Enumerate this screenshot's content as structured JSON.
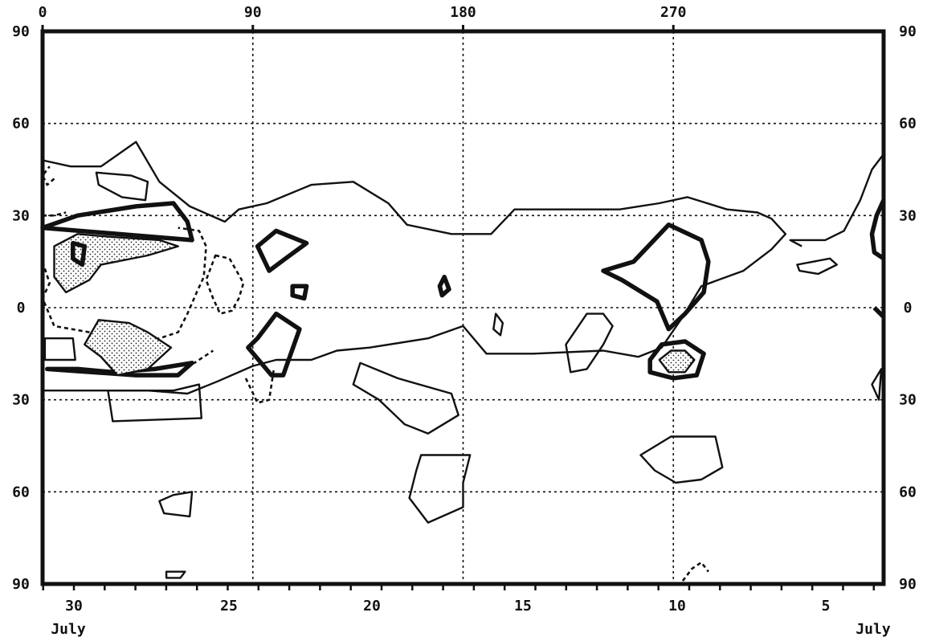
{
  "chart_data": {
    "type": "contour",
    "x_axis_top": {
      "min": 0,
      "max": 360,
      "tick_labels": [
        "0",
        "90",
        "180",
        "270"
      ],
      "tick_values": [
        0,
        90,
        180,
        270
      ]
    },
    "y_axis": {
      "min": -90,
      "max": 90,
      "tick_labels": [
        "90",
        "60",
        "30",
        "0",
        "30",
        "60",
        "90"
      ],
      "tick_values": [
        90,
        60,
        30,
        0,
        -30,
        -60,
        -90
      ]
    },
    "x_axis_bottom": {
      "tick_labels": [
        "30",
        "25",
        "20",
        "15",
        "10",
        "5"
      ],
      "month_labels": [
        "July",
        "July"
      ]
    },
    "grid": "dotted",
    "contours": [
      {
        "style": "thin",
        "closed": false,
        "points": [
          [
            0,
            48
          ],
          [
            12,
            46
          ],
          [
            25,
            46
          ],
          [
            40,
            54
          ],
          [
            50,
            41
          ],
          [
            63,
            33
          ],
          [
            78,
            28
          ],
          [
            84,
            32
          ],
          [
            96,
            34
          ],
          [
            115,
            40
          ],
          [
            133,
            41
          ],
          [
            148,
            34
          ],
          [
            156,
            27
          ],
          [
            175,
            24
          ],
          [
            192,
            24
          ],
          [
            202,
            32
          ],
          [
            220,
            32
          ],
          [
            247,
            32
          ],
          [
            264,
            34
          ],
          [
            276,
            36
          ],
          [
            293,
            32
          ],
          [
            306,
            31
          ],
          [
            312,
            29
          ],
          [
            318,
            24
          ],
          [
            312,
            19
          ],
          [
            300,
            12
          ],
          [
            282,
            7
          ],
          [
            274,
            -3
          ],
          [
            265,
            -13
          ],
          [
            255,
            -16
          ],
          [
            240,
            -14
          ],
          [
            210,
            -15
          ],
          [
            190,
            -15
          ],
          [
            180,
            -6
          ],
          [
            165,
            -10
          ],
          [
            140,
            -13
          ],
          [
            126,
            -14
          ],
          [
            115,
            -17
          ],
          [
            100,
            -17
          ],
          [
            90,
            -19
          ],
          [
            75,
            -24
          ],
          [
            62,
            -28
          ],
          [
            45,
            -27
          ],
          [
            20,
            -27
          ],
          [
            0,
            -27
          ]
        ]
      },
      {
        "style": "thin",
        "closed": true,
        "points": [
          [
            23,
            44
          ],
          [
            38,
            43
          ],
          [
            45,
            41
          ],
          [
            44,
            35
          ],
          [
            34,
            36
          ],
          [
            24,
            40
          ]
        ]
      },
      {
        "style": "thin",
        "closed": true,
        "points": [
          [
            1,
            -10
          ],
          [
            13,
            -10
          ],
          [
            14,
            -17
          ],
          [
            1,
            -17
          ]
        ]
      },
      {
        "style": "thin",
        "closed": true,
        "points": [
          [
            28,
            -27
          ],
          [
            56,
            -27
          ],
          [
            67,
            -25
          ],
          [
            68,
            -36
          ],
          [
            30,
            -37
          ]
        ]
      },
      {
        "style": "thin",
        "closed": true,
        "points": [
          [
            136,
            -18
          ],
          [
            152,
            -23
          ],
          [
            175,
            -28
          ],
          [
            178,
            -35
          ],
          [
            165,
            -41
          ],
          [
            155,
            -38
          ],
          [
            144,
            -30
          ],
          [
            133,
            -25
          ]
        ]
      },
      {
        "style": "thin",
        "closed": true,
        "points": [
          [
            162,
            -48
          ],
          [
            183,
            -48
          ],
          [
            180,
            -57
          ],
          [
            180,
            -65
          ],
          [
            165,
            -70
          ],
          [
            157,
            -62
          ],
          [
            160,
            -53
          ]
        ]
      },
      {
        "style": "thin",
        "closed": true,
        "points": [
          [
            269,
            -42
          ],
          [
            288,
            -42
          ],
          [
            291,
            -52
          ],
          [
            282,
            -56
          ],
          [
            271,
            -57
          ],
          [
            262,
            -53
          ],
          [
            256,
            -48
          ]
        ]
      },
      {
        "style": "thin",
        "closed": true,
        "points": [
          [
            56,
            -61
          ],
          [
            64,
            -60
          ],
          [
            63,
            -68
          ],
          [
            52,
            -67
          ],
          [
            50,
            -63
          ]
        ]
      },
      {
        "style": "thin",
        "closed": true,
        "points": [
          [
            53,
            -86
          ],
          [
            61,
            -86
          ],
          [
            59,
            -88
          ],
          [
            53,
            -88
          ]
        ]
      },
      {
        "style": "thin",
        "closed": true,
        "points": [
          [
            233,
            -2
          ],
          [
            240,
            -2
          ],
          [
            244,
            -6
          ],
          [
            240,
            -12
          ],
          [
            233,
            -20
          ],
          [
            226,
            -21
          ],
          [
            224,
            -12
          ]
        ]
      },
      {
        "style": "thin",
        "closed": true,
        "points": [
          [
            194,
            -2
          ],
          [
            197,
            -5
          ],
          [
            196,
            -9
          ],
          [
            193,
            -7
          ]
        ]
      },
      {
        "style": "thin",
        "closed": true,
        "points": [
          [
            323,
            14
          ],
          [
            337,
            16
          ],
          [
            340,
            14
          ],
          [
            332,
            11
          ],
          [
            324,
            12
          ]
        ]
      },
      {
        "style": "thin",
        "closed": true,
        "points": [
          [
            358,
            -30
          ],
          [
            355,
            -25
          ],
          [
            359,
            -20
          ]
        ]
      },
      {
        "style": "thin",
        "closed": false,
        "points": [
          [
            360,
            50
          ],
          [
            355,
            45
          ],
          [
            350,
            35
          ],
          [
            343,
            25
          ],
          [
            335,
            22
          ],
          [
            320,
            22
          ],
          [
            325,
            20
          ]
        ]
      },
      {
        "style": "thick",
        "closed": true,
        "points": [
          [
            0,
            26
          ],
          [
            15,
            30
          ],
          [
            40,
            33
          ],
          [
            56,
            34
          ],
          [
            62,
            28
          ],
          [
            64,
            22
          ]
        ]
      },
      {
        "style": "thick",
        "closed": true,
        "points": [
          [
            40,
            -22
          ],
          [
            58,
            -22
          ],
          [
            64,
            -18
          ],
          [
            48,
            -20
          ],
          [
            30,
            -21
          ],
          [
            15,
            -20
          ],
          [
            2,
            -20
          ]
        ]
      },
      {
        "style": "thick",
        "closed": true,
        "points": [
          [
            92,
            20
          ],
          [
            100,
            25
          ],
          [
            113,
            21
          ],
          [
            104,
            16
          ],
          [
            97,
            12
          ]
        ]
      },
      {
        "style": "thick",
        "closed": true,
        "points": [
          [
            107,
            7
          ],
          [
            113,
            7
          ],
          [
            112,
            3
          ],
          [
            107,
            4
          ]
        ]
      },
      {
        "style": "thick",
        "closed": true,
        "points": [
          [
            92,
            -10
          ],
          [
            100,
            -2
          ],
          [
            110,
            -7
          ],
          [
            103,
            -22
          ],
          [
            98,
            -22
          ],
          [
            88,
            -13
          ]
        ]
      },
      {
        "style": "thick",
        "closed": true,
        "points": [
          [
            172,
            10
          ],
          [
            174,
            6
          ],
          [
            171,
            4
          ],
          [
            170,
            7
          ]
        ]
      },
      {
        "style": "thick",
        "closed": true,
        "points": [
          [
            260,
            -17
          ],
          [
            265,
            -12
          ],
          [
            275,
            -11
          ],
          [
            283,
            -15
          ],
          [
            280,
            -22
          ],
          [
            270,
            -23
          ],
          [
            260,
            -21
          ]
        ]
      },
      {
        "style": "thick",
        "closed": true,
        "points": [
          [
            253,
            15
          ],
          [
            268,
            27
          ],
          [
            282,
            22
          ],
          [
            285,
            15
          ],
          [
            283,
            5
          ],
          [
            275,
            -2
          ],
          [
            268,
            -7
          ],
          [
            263,
            2
          ],
          [
            248,
            9
          ],
          [
            240,
            12
          ]
        ]
      },
      {
        "style": "thick",
        "closed": false,
        "points": [
          [
            360,
            35
          ],
          [
            357,
            30
          ],
          [
            355,
            24
          ],
          [
            356,
            18
          ],
          [
            360,
            16
          ]
        ]
      },
      {
        "style": "thick",
        "closed": false,
        "points": [
          [
            356,
            0
          ],
          [
            360,
            -3
          ]
        ]
      },
      {
        "style": "dashed",
        "closed": false,
        "points": [
          [
            0,
            15
          ],
          [
            3,
            8
          ],
          [
            0,
            3
          ],
          [
            5,
            -6
          ],
          [
            20,
            -8
          ],
          [
            37,
            -12
          ],
          [
            50,
            -10
          ],
          [
            58,
            -8
          ],
          [
            62,
            -2
          ],
          [
            66,
            5
          ],
          [
            69,
            10
          ],
          [
            70,
            20
          ],
          [
            67,
            25
          ],
          [
            58,
            26
          ]
        ]
      },
      {
        "style": "dashed",
        "closed": true,
        "points": [
          [
            74,
            17
          ],
          [
            80,
            16
          ],
          [
            86,
            8
          ],
          [
            84,
            3
          ],
          [
            81,
            -1
          ],
          [
            76,
            -2
          ],
          [
            73,
            3
          ],
          [
            70,
            9
          ]
        ]
      },
      {
        "style": "dashed",
        "closed": false,
        "points": [
          [
            5,
            42
          ],
          [
            2,
            40
          ],
          [
            0,
            43
          ],
          [
            3,
            46
          ]
        ]
      },
      {
        "style": "dashed",
        "closed": false,
        "points": [
          [
            0,
            30
          ],
          [
            5,
            30
          ],
          [
            10,
            31
          ]
        ]
      },
      {
        "style": "dashed",
        "closed": false,
        "points": [
          [
            55,
            -19
          ],
          [
            65,
            -18
          ],
          [
            73,
            -14
          ]
        ]
      },
      {
        "style": "dashed",
        "closed": false,
        "points": [
          [
            87,
            -23
          ],
          [
            92,
            -31
          ],
          [
            97,
            -30
          ],
          [
            99,
            -20
          ]
        ]
      },
      {
        "style": "dashed",
        "closed": false,
        "points": [
          [
            274,
            -89
          ],
          [
            278,
            -85
          ],
          [
            282,
            -83
          ],
          [
            285,
            -86
          ]
        ]
      },
      {
        "style": "stippled",
        "closed": true,
        "points": [
          [
            5,
            20
          ],
          [
            15,
            24
          ],
          [
            30,
            23
          ],
          [
            50,
            22
          ],
          [
            58,
            20
          ],
          [
            45,
            17
          ],
          [
            25,
            14
          ],
          [
            20,
            9
          ],
          [
            10,
            5
          ],
          [
            5,
            10
          ]
        ]
      },
      {
        "style": "stippled",
        "closed": true,
        "points": [
          [
            24,
            -4
          ],
          [
            37,
            -5
          ],
          [
            45,
            -8
          ],
          [
            55,
            -13
          ],
          [
            45,
            -20
          ],
          [
            32,
            -22
          ],
          [
            25,
            -16
          ],
          [
            18,
            -12
          ]
        ]
      },
      {
        "style": "stippled",
        "closed": true,
        "points": [
          [
            264,
            -17
          ],
          [
            269,
            -14
          ],
          [
            275,
            -14
          ],
          [
            279,
            -17
          ],
          [
            275,
            -21
          ],
          [
            268,
            -21
          ]
        ]
      },
      {
        "style": "thick",
        "closed": true,
        "points": [
          [
            13,
            21
          ],
          [
            18,
            20
          ],
          [
            17,
            14
          ],
          [
            13,
            16
          ]
        ]
      }
    ]
  }
}
